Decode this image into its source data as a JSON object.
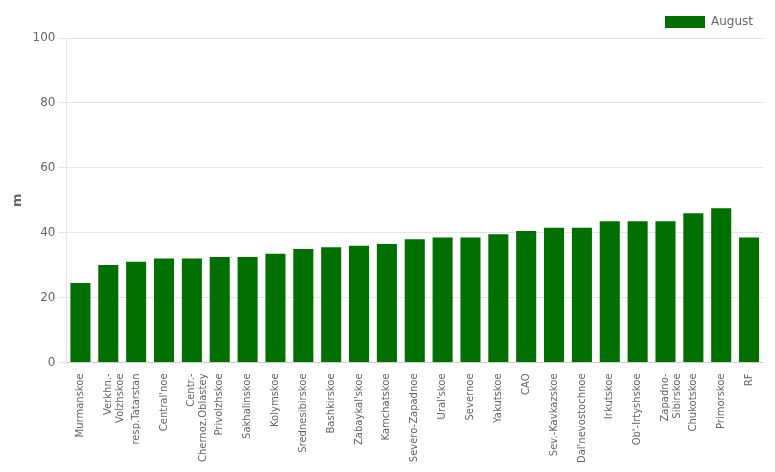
{
  "chart_data": {
    "type": "bar",
    "categories": [
      "Murmanskoe",
      "Verkhn.-\nVolzhskoe",
      "resp.Tatarstan",
      "Central'noe",
      "Centr.-\nChernoz.Oblastey",
      "Privolzhskoe",
      "Sakhalinskoe",
      "Kolymskoe",
      "Srednesibirskoe",
      "Bashkirskoe",
      "Zabaykal'skoe",
      "Kamchatskoe",
      "Severo-Zapadnoe",
      "Ural'skoe",
      "Severnoe",
      "Yakutskoe",
      "CAO",
      "Sev.-Kavkazskoe",
      "Dal'nevostochnoe",
      "Irkutskoe",
      "Ob'-Irtyshskoe",
      "Zapadno-\nSibirskoe",
      "Chukotskoe",
      "Primorskoe",
      "RF"
    ],
    "series": [
      {
        "name": "August",
        "color": "#007000",
        "values": [
          24.5,
          30.0,
          31.0,
          32.0,
          32.0,
          32.5,
          32.5,
          33.5,
          35.0,
          35.5,
          36.0,
          36.5,
          38.0,
          38.5,
          38.5,
          39.5,
          40.5,
          41.5,
          41.5,
          43.5,
          43.5,
          43.5,
          46.0,
          47.5,
          38.5
        ]
      }
    ],
    "ylabel": "m",
    "ylim": [
      0,
      100
    ],
    "yticks": [
      0,
      20,
      40,
      60,
      80,
      100
    ],
    "grid": true,
    "legend": "upper right"
  }
}
